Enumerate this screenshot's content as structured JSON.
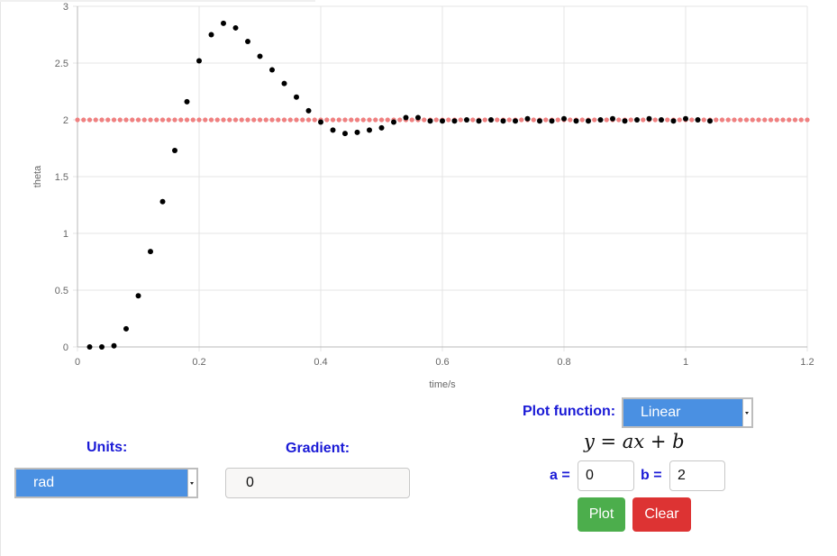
{
  "chart_data": {
    "type": "scatter",
    "xlabel": "time/s",
    "ylabel": "theta",
    "xlim": [
      0,
      1.2
    ],
    "ylim": [
      0,
      3
    ],
    "x_ticks": [
      "0",
      "0.2",
      "0.4",
      "0.6",
      "0.8",
      "1",
      "1.2"
    ],
    "y_ticks": [
      "0",
      "0.5",
      "1",
      "1.5",
      "2",
      "2.5",
      "3"
    ],
    "grid": true,
    "series": [
      {
        "color": "#f08080",
        "x": [
          0,
          0.01,
          0.02,
          0.03,
          0.04,
          0.05,
          0.06,
          0.07,
          0.08,
          0.09,
          0.1,
          0.11,
          0.12,
          0.13,
          0.14,
          0.15,
          0.16,
          0.17,
          0.18,
          0.19,
          0.2,
          0.21,
          0.22,
          0.23,
          0.24,
          0.25,
          0.26,
          0.27,
          0.28,
          0.29,
          0.3,
          0.31,
          0.32,
          0.33,
          0.34,
          0.35,
          0.36,
          0.37,
          0.38,
          0.39,
          0.4,
          0.41,
          0.42,
          0.43,
          0.44,
          0.45,
          0.46,
          0.47,
          0.48,
          0.49,
          0.5,
          0.51,
          0.52,
          0.53,
          0.54,
          0.55,
          0.56,
          0.57,
          0.58,
          0.59,
          0.6,
          0.61,
          0.62,
          0.63,
          0.64,
          0.65,
          0.66,
          0.67,
          0.68,
          0.69,
          0.7,
          0.71,
          0.72,
          0.73,
          0.74,
          0.75,
          0.76,
          0.77,
          0.78,
          0.79,
          0.8,
          0.81,
          0.82,
          0.83,
          0.84,
          0.85,
          0.86,
          0.87,
          0.88,
          0.89,
          0.9,
          0.91,
          0.92,
          0.93,
          0.94,
          0.95,
          0.96,
          0.97,
          0.98,
          0.99,
          1,
          1.01,
          1.02,
          1.03,
          1.04,
          1.05,
          1.06,
          1.07,
          1.08,
          1.09,
          1.1,
          1.11,
          1.12,
          1.13,
          1.14,
          1.15,
          1.16,
          1.17,
          1.18,
          1.19,
          1.2
        ],
        "y": [
          2,
          2,
          2,
          2,
          2,
          2,
          2,
          2,
          2,
          2,
          2,
          2,
          2,
          2,
          2,
          2,
          2,
          2,
          2,
          2,
          2,
          2,
          2,
          2,
          2,
          2,
          2,
          2,
          2,
          2,
          2,
          2,
          2,
          2,
          2,
          2,
          2,
          2,
          2,
          2,
          2,
          2,
          2,
          2,
          2,
          2,
          2,
          2,
          2,
          2,
          2,
          2,
          2,
          2,
          2,
          2,
          2,
          2,
          2,
          2,
          2,
          2,
          2,
          2,
          2,
          2,
          2,
          2,
          2,
          2,
          2,
          2,
          2,
          2,
          2,
          2,
          2,
          2,
          2,
          2,
          2,
          2,
          2,
          2,
          2,
          2,
          2,
          2,
          2,
          2,
          2,
          2,
          2,
          2,
          2,
          2,
          2,
          2,
          2,
          2,
          2,
          2,
          2,
          2,
          2,
          2,
          2,
          2,
          2,
          2,
          2,
          2,
          2,
          2,
          2,
          2,
          2,
          2,
          2,
          2,
          2
        ]
      },
      {
        "color": "#000000",
        "x": [
          0.02,
          0.04,
          0.06,
          0.08,
          0.1,
          0.12,
          0.14,
          0.16,
          0.18,
          0.2,
          0.22,
          0.24,
          0.26,
          0.28,
          0.3,
          0.32,
          0.34,
          0.36,
          0.38,
          0.4,
          0.42,
          0.44,
          0.46,
          0.48,
          0.5,
          0.52,
          0.54,
          0.56,
          0.58,
          0.6,
          0.62,
          0.64,
          0.66,
          0.68,
          0.7,
          0.72,
          0.74,
          0.76,
          0.78,
          0.8,
          0.82,
          0.84,
          0.86,
          0.88,
          0.9,
          0.92,
          0.94,
          0.96,
          0.98,
          1,
          1.02,
          1.04
        ],
        "y": [
          0,
          0,
          0.01,
          0.16,
          0.45,
          0.84,
          1.28,
          1.73,
          2.16,
          2.52,
          2.75,
          2.85,
          2.81,
          2.69,
          2.56,
          2.44,
          2.32,
          2.2,
          2.08,
          1.98,
          1.91,
          1.88,
          1.89,
          1.91,
          1.93,
          1.98,
          2.02,
          2.02,
          1.99,
          1.99,
          1.99,
          2.0,
          1.99,
          2.0,
          1.99,
          1.99,
          2.01,
          1.99,
          1.99,
          2.01,
          1.99,
          1.99,
          2.0,
          2.01,
          1.99,
          2.0,
          2.01,
          2.0,
          1.99,
          2.01,
          2.0,
          1.99
        ]
      }
    ]
  },
  "plot_function": {
    "label": "Plot function:",
    "selected": "Linear",
    "formula": "y = ax + b",
    "a_label": "a =",
    "a_value": "0",
    "b_label": "b =",
    "b_value": "2",
    "plot_button": "Plot",
    "clear_button": "Clear"
  },
  "units": {
    "label": "Units:",
    "selected": "rad"
  },
  "gradient": {
    "label": "Gradient:",
    "value": "0"
  },
  "colors": {
    "label_blue": "#1a1ad6",
    "select_blue": "#4a90e2",
    "plot_green": "#4cae4c",
    "clear_red": "#dd3333",
    "fit_line_points": "#f08080",
    "data_points": "#000000"
  }
}
